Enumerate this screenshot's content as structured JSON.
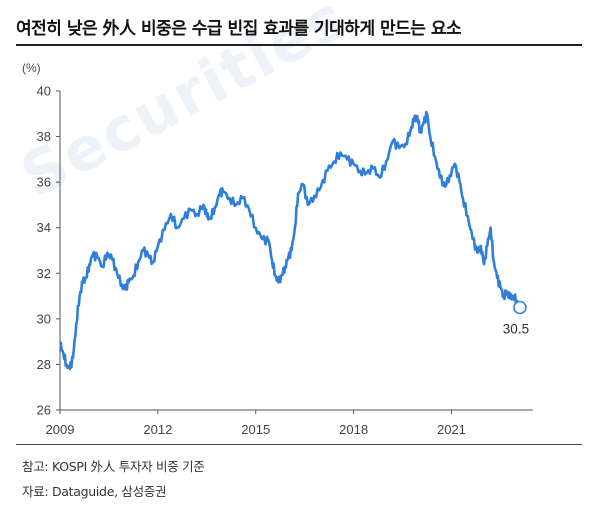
{
  "title": "여전히 낮은 外人 비중은 수급 빈집 효과를 기대하게 만드는 요소",
  "watermark": "Securities",
  "notes": {
    "note": "참고: KOSPI 外人 투자자 비중 기준",
    "source": "자료: Dataguide, 삼성증권"
  },
  "colors": {
    "line": "#2f7fd8",
    "marker": "#2f7fd8",
    "axis": "#555555"
  },
  "chart_data": {
    "type": "line",
    "unit_label": "(%)",
    "xlim": [
      2009,
      2023.5
    ],
    "ylim": [
      26,
      40
    ],
    "x_ticks": [
      2009,
      2012,
      2015,
      2018,
      2021
    ],
    "x_tick_labels": [
      "2009",
      "2012",
      "2015",
      "2018",
      "2021"
    ],
    "y_ticks": [
      26,
      28,
      30,
      32,
      34,
      36,
      38,
      40
    ],
    "y_tick_labels": [
      "26",
      "28",
      "30",
      "32",
      "34",
      "36",
      "38",
      "40"
    ],
    "grid": false,
    "series": [
      {
        "x": [
          2009.0,
          2009.1,
          2009.2,
          2009.3,
          2009.4,
          2009.5,
          2009.6,
          2009.7,
          2009.8,
          2009.9,
          2010.0,
          2010.15,
          2010.3,
          2010.45,
          2010.6,
          2010.75,
          2010.9,
          2011.0,
          2011.1,
          2011.25,
          2011.4,
          2011.55,
          2011.7,
          2011.85,
          2012.0,
          2012.2,
          2012.4,
          2012.6,
          2012.8,
          2013.0,
          2013.2,
          2013.4,
          2013.5,
          2013.6,
          2013.75,
          2013.9,
          2014.0,
          2014.2,
          2014.4,
          2014.6,
          2014.8,
          2015.0,
          2015.2,
          2015.4,
          2015.5,
          2015.6,
          2015.7,
          2015.8,
          2015.9,
          2016.0,
          2016.1,
          2016.2,
          2016.3,
          2016.45,
          2016.6,
          2016.8,
          2017.0,
          2017.2,
          2017.4,
          2017.6,
          2017.8,
          2018.0,
          2018.2,
          2018.4,
          2018.6,
          2018.8,
          2019.0,
          2019.2,
          2019.4,
          2019.6,
          2019.75,
          2019.85,
          2019.95,
          2020.05,
          2020.15,
          2020.25,
          2020.35,
          2020.5,
          2020.65,
          2020.8,
          2020.95,
          2021.1,
          2021.25,
          2021.35,
          2021.5,
          2021.65,
          2021.8,
          2021.9,
          2022.0,
          2022.1,
          2022.2,
          2022.3,
          2022.4,
          2022.5,
          2022.6,
          2022.7,
          2022.8,
          2022.9,
          2023.0,
          2023.1
        ],
        "y": [
          28.9,
          28.5,
          28.0,
          27.8,
          28.3,
          29.8,
          31.0,
          31.6,
          31.8,
          32.4,
          32.8,
          32.7,
          32.3,
          32.9,
          32.6,
          32.0,
          31.5,
          31.3,
          31.6,
          31.9,
          32.5,
          33.0,
          32.8,
          32.5,
          33.2,
          33.9,
          34.6,
          34.0,
          34.4,
          34.8,
          34.6,
          35.0,
          34.5,
          34.4,
          34.9,
          35.5,
          35.6,
          35.3,
          35.0,
          35.3,
          34.8,
          34.0,
          33.5,
          33.4,
          32.6,
          31.9,
          31.6,
          31.9,
          32.3,
          32.7,
          33.0,
          34.0,
          35.5,
          35.9,
          35.0,
          35.4,
          35.8,
          36.5,
          36.9,
          37.3,
          37.0,
          36.8,
          36.5,
          36.4,
          36.6,
          36.2,
          36.9,
          37.8,
          37.5,
          37.7,
          38.3,
          38.7,
          38.9,
          38.2,
          38.6,
          39.0,
          38.0,
          37.1,
          36.2,
          35.8,
          36.3,
          36.8,
          36.0,
          35.3,
          34.5,
          33.5,
          32.9,
          33.2,
          32.4,
          33.2,
          34.0,
          32.5,
          31.8,
          31.4,
          31.0,
          31.2,
          30.9,
          31.0,
          30.8,
          30.5
        ]
      }
    ],
    "annotations": [
      {
        "x": 2023.1,
        "y": 30.5,
        "text": "30.5"
      }
    ]
  }
}
